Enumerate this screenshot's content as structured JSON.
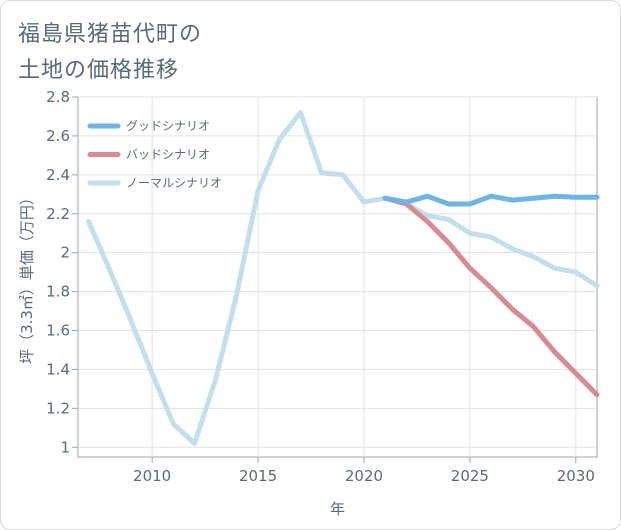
{
  "title_line1": "福島県猪苗代町の",
  "title_line2": "土地の価格推移",
  "chart_data": {
    "type": "line",
    "title": "福島県猪苗代町の土地の価格推移",
    "xlabel": "年",
    "ylabel": "坪（3.3㎡）単価（万円）",
    "xlim": [
      2006.5,
      2031
    ],
    "ylim": [
      0.95,
      2.8
    ],
    "xticks": [
      2010,
      2015,
      2020,
      2025,
      2030
    ],
    "yticks": [
      1,
      1.2,
      1.4,
      1.6,
      1.8,
      2,
      2.2,
      2.4,
      2.6,
      2.8
    ],
    "ytick_labels": [
      "1",
      "1.2",
      "1.4",
      "1.6",
      "1.8",
      "2",
      "2.2",
      "2.4",
      "2.6",
      "2.8"
    ],
    "grid": true,
    "legend_position": "top-left",
    "series": [
      {
        "name": "グッドシナリオ",
        "color": "#6cb4ea",
        "x": [
          2021,
          2022,
          2023,
          2024,
          2025,
          2026,
          2027,
          2028,
          2029,
          2030,
          2031
        ],
        "y": [
          2.28,
          2.26,
          2.29,
          2.25,
          2.25,
          2.29,
          2.27,
          2.28,
          2.29,
          2.285,
          2.285
        ]
      },
      {
        "name": "バッドシナリオ",
        "color": "#d98a93",
        "x": [
          2021,
          2022,
          2023,
          2024,
          2025,
          2026,
          2027,
          2028,
          2029,
          2030,
          2031
        ],
        "y": [
          2.28,
          2.25,
          2.16,
          2.05,
          1.92,
          1.82,
          1.71,
          1.62,
          1.49,
          1.38,
          1.27
        ]
      },
      {
        "name": "ノーマルシナリオ",
        "color": "#c2dfec",
        "x": [
          2007,
          2008,
          2009,
          2010,
          2011,
          2012,
          2013,
          2014,
          2015,
          2016,
          2017,
          2018,
          2019,
          2020,
          2021,
          2022,
          2023,
          2024,
          2025,
          2026,
          2027,
          2028,
          2029,
          2030,
          2031
        ],
        "y": [
          2.16,
          1.91,
          1.65,
          1.38,
          1.12,
          1.02,
          1.35,
          1.79,
          2.32,
          2.58,
          2.72,
          2.41,
          2.4,
          2.26,
          2.28,
          2.25,
          2.19,
          2.17,
          2.1,
          2.08,
          2.02,
          1.98,
          1.92,
          1.9,
          1.83
        ]
      }
    ]
  }
}
